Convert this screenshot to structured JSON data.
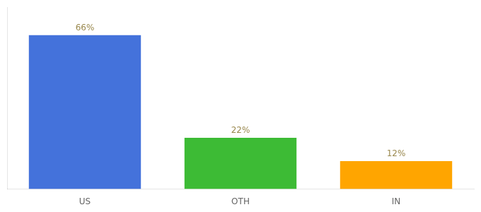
{
  "chart_data": {
    "type": "bar",
    "categories": [
      "US",
      "OTH",
      "IN"
    ],
    "values": [
      66,
      22,
      12
    ],
    "value_labels": [
      "66%",
      "22%",
      "12%"
    ],
    "colors": [
      "#4472db",
      "#3dbb35",
      "#ffa500"
    ],
    "ylim": [
      0,
      78
    ],
    "grid": false,
    "data_labels": true,
    "tick_labels": "x"
  }
}
